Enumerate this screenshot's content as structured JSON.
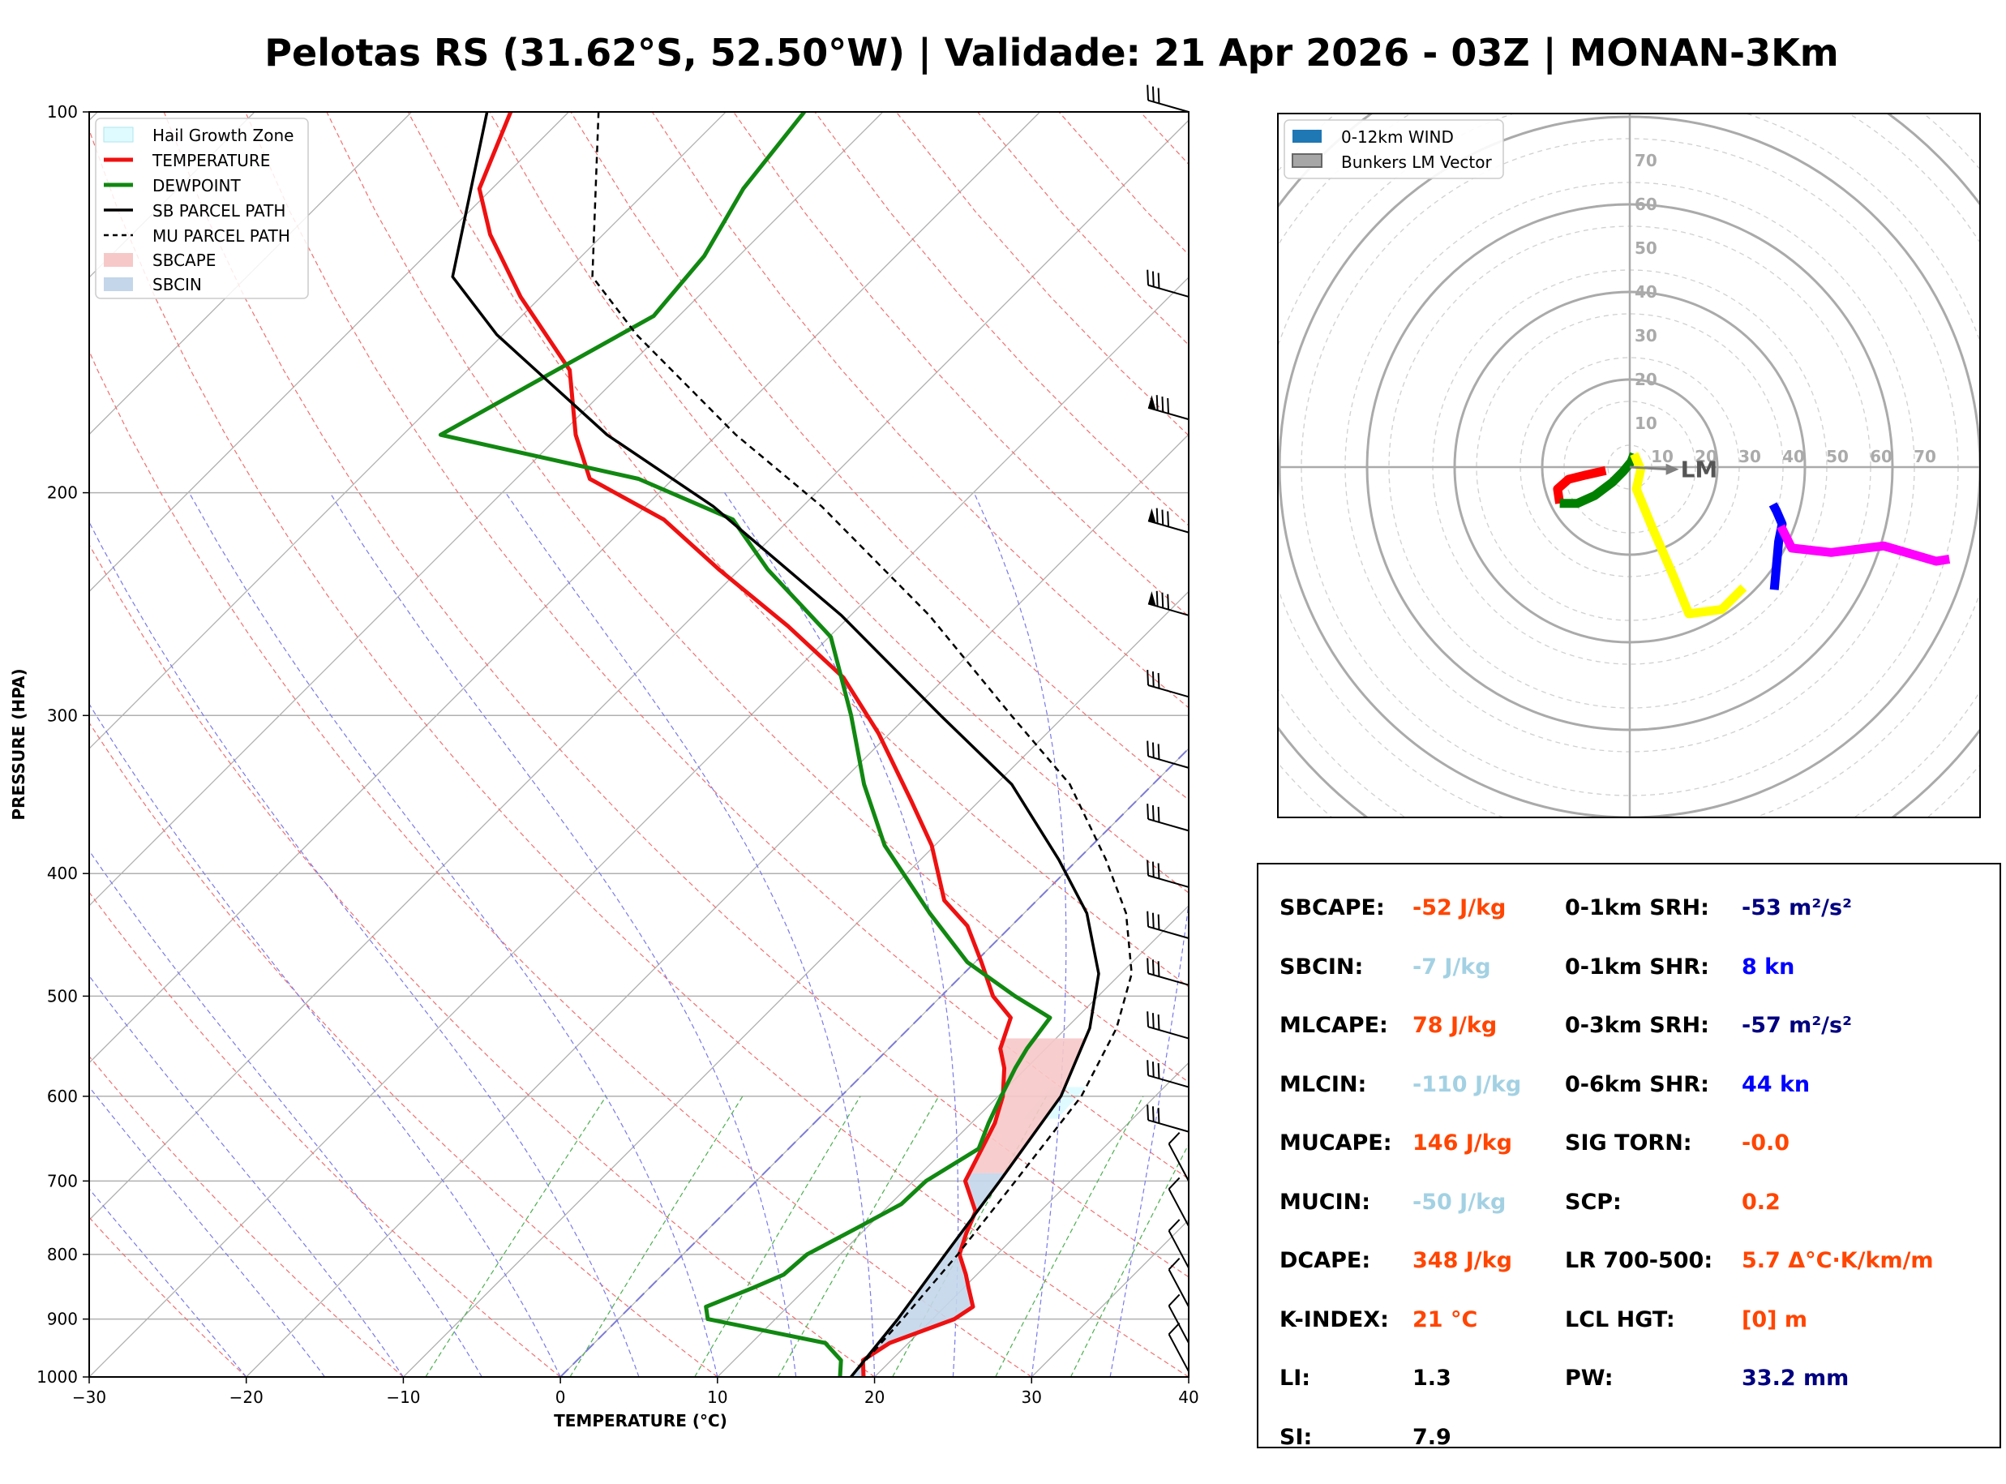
{
  "title": "Pelotas RS (31.62°S, 52.50°W) | Validade: 21 Apr 2026 - 03Z | MONAN-3Km",
  "colors": {
    "temperature": "#ee1111",
    "dewpoint": "#118811",
    "sb_parcel": "#000000",
    "mu_parcel": "#000000",
    "sbcape": "#f7c8c8",
    "sbcin": "#c3d6ea",
    "hgz": "#e0fbff",
    "hodo_0_1": "#ff0000",
    "hodo_1_3": "#008000",
    "hodo_3_6": "#ffff00",
    "hodo_6_9": "#0000ff",
    "hodo_9_12": "#ff00ff",
    "value_orange": "#ff4500",
    "value_lightblue": "#a3d1e3",
    "value_navy": "#000080",
    "value_blue": "#0000ff",
    "value_black": "#000000"
  },
  "skewt": {
    "legend": [
      {
        "name": "hail",
        "label": "Hail Growth Zone"
      },
      {
        "name": "temp",
        "label": "TEMPERATURE"
      },
      {
        "name": "dew",
        "label": "DEWPOINT"
      },
      {
        "name": "sb",
        "label": "SB PARCEL PATH"
      },
      {
        "name": "mu",
        "label": "MU PARCEL PATH"
      },
      {
        "name": "cape",
        "label": "SBCAPE"
      },
      {
        "name": "cin",
        "label": "SBCIN"
      }
    ],
    "xlabel": "TEMPERATURE (°C)",
    "ylabel": "PRESSURE (HPA)"
  },
  "hodograph": {
    "legend": [
      {
        "name": "wind",
        "label": "0-12km WIND"
      },
      {
        "name": "bunkers",
        "label": "Bunkers LM Vector"
      }
    ],
    "ring_labels": [
      "10",
      "20",
      "30",
      "40",
      "50",
      "60",
      "70"
    ],
    "lm_label": "LM"
  },
  "parameters": {
    "left": [
      {
        "label": "SBCAPE:",
        "value": "-52 J/kg",
        "color": "#ff4500"
      },
      {
        "label": "SBCIN:",
        "value": "-7 J/kg",
        "color": "#a3d1e3"
      },
      {
        "label": "MLCAPE:",
        "value": "78 J/kg",
        "color": "#ff4500"
      },
      {
        "label": "MLCIN:",
        "value": "-110 J/kg",
        "color": "#a3d1e3"
      },
      {
        "label": "MUCAPE:",
        "value": "146 J/kg",
        "color": "#ff4500"
      },
      {
        "label": "MUCIN:",
        "value": "-50 J/kg",
        "color": "#a3d1e3"
      },
      {
        "label": "DCAPE:",
        "value": "348 J/kg",
        "color": "#ff4500"
      },
      {
        "label": "K-INDEX:",
        "value": "21 °C",
        "color": "#ff4500"
      },
      {
        "label": "LI:",
        "value": "1.3",
        "color": "#000000"
      },
      {
        "label": "SI:",
        "value": "7.9",
        "color": "#000000"
      }
    ],
    "right": [
      {
        "label": "0-1km SRH:",
        "value": "-53 m²/s²",
        "color": "#000080"
      },
      {
        "label": "0-1km SHR:",
        "value": "8 kn",
        "color": "#0000ff"
      },
      {
        "label": "0-3km SRH:",
        "value": "-57 m²/s²",
        "color": "#000080"
      },
      {
        "label": "0-6km SHR:",
        "value": "44 kn",
        "color": "#0000ff"
      },
      {
        "label": "SIG TORN:",
        "value": "-0.0",
        "color": "#ff4500"
      },
      {
        "label": "SCP:",
        "value": "0.2",
        "color": "#ff4500"
      },
      {
        "label": "LR 700-500:",
        "value": "5.7 Δ°C·K/km/m",
        "color": "#ff4500"
      },
      {
        "label": "LCL HGT:",
        "value": "[0] m",
        "color": "#ff4500"
      },
      {
        "label": "PW:",
        "value": "33.2 mm",
        "color": "#000080"
      }
    ]
  },
  "chart_data": [
    {
      "type": "line",
      "subtype": "skew-t log-p",
      "xlabel": "TEMPERATURE (°C)",
      "ylabel": "PRESSURE (HPA)",
      "xlim": [
        -30,
        40
      ],
      "ylim": [
        1000,
        100
      ],
      "yscale": "log",
      "xticks": [
        -30,
        -20,
        -10,
        0,
        10,
        20,
        30,
        40
      ],
      "yticks": [
        1000,
        900,
        800,
        700,
        600,
        500,
        400,
        300,
        200,
        100
      ],
      "legend_position": "top-left",
      "series": [
        {
          "name": "TEMPERATURE",
          "points": [
            [
              19.3,
              1000
            ],
            [
              18.2,
              970
            ],
            [
              18.8,
              940
            ],
            [
              21.4,
              900
            ],
            [
              21.8,
              880
            ],
            [
              20.3,
              850
            ],
            [
              19.3,
              830
            ],
            [
              17.6,
              800
            ],
            [
              16.7,
              770
            ],
            [
              15.9,
              740
            ],
            [
              13.3,
              700
            ],
            [
              12.3,
              660
            ],
            [
              11.5,
              630
            ],
            [
              10.3,
              600
            ],
            [
              8.6,
              570
            ],
            [
              7.1,
              550
            ],
            [
              5.8,
              520
            ],
            [
              3.3,
              500
            ],
            [
              0.4,
              470
            ],
            [
              -2.8,
              440
            ],
            [
              -5.9,
              420
            ],
            [
              -10.2,
              380
            ],
            [
              -14.4,
              350
            ],
            [
              -20.7,
              310
            ],
            [
              -26.5,
              280
            ],
            [
              -33.3,
              255
            ],
            [
              -41.3,
              230
            ],
            [
              -48.0,
              210
            ],
            [
              -55.3,
              195
            ],
            [
              -59.0,
              180
            ],
            [
              -63.5,
              160
            ],
            [
              -71.3,
              140
            ],
            [
              -77.2,
              125
            ],
            [
              -80.8,
              115
            ],
            [
              -83.7,
              100
            ]
          ]
        },
        {
          "name": "DEWPOINT",
          "points": [
            [
              17.8,
              1000
            ],
            [
              16.8,
              970
            ],
            [
              14.7,
              940
            ],
            [
              5.7,
              900
            ],
            [
              4.8,
              880
            ],
            [
              6.6,
              850
            ],
            [
              7.7,
              830
            ],
            [
              7.9,
              800
            ],
            [
              9.5,
              760
            ],
            [
              10.7,
              730
            ],
            [
              10.8,
              700
            ],
            [
              12.1,
              660
            ],
            [
              11.1,
              630
            ],
            [
              10.2,
              600
            ],
            [
              9.3,
              570
            ],
            [
              8.8,
              550
            ],
            [
              8.3,
              520
            ],
            [
              4.7,
              500
            ],
            [
              -0.5,
              470
            ],
            [
              -6.0,
              430
            ],
            [
              -13.2,
              380
            ],
            [
              -18.4,
              340
            ],
            [
              -23.6,
              300
            ],
            [
              -29.9,
              260
            ],
            [
              -38.2,
              230
            ],
            [
              -43.6,
              210
            ],
            [
              -52.2,
              195
            ],
            [
              -67.6,
              180
            ],
            [
              -65.2,
              165
            ],
            [
              -61.6,
              145
            ],
            [
              -62.2,
              130
            ],
            [
              -64.0,
              115
            ],
            [
              -65.0,
              100
            ]
          ]
        },
        {
          "name": "SB PARCEL PATH",
          "points": [
            [
              18.5,
              1000
            ],
            [
              17.8,
              900
            ],
            [
              16.7,
              800
            ],
            [
              15.5,
              700
            ],
            [
              14.0,
              600
            ],
            [
              11.5,
              530
            ],
            [
              8.6,
              480
            ],
            [
              4.0,
              430
            ],
            [
              -1.2,
              390
            ],
            [
              -9.0,
              340
            ],
            [
              -17.9,
              300
            ],
            [
              -30.6,
              250
            ],
            [
              -45.7,
              205
            ],
            [
              -57.0,
              180
            ],
            [
              -70.4,
              150
            ],
            [
              -76.9,
              135
            ],
            [
              -85.2,
              100
            ]
          ]
        },
        {
          "name": "MU PARCEL PATH",
          "points": [
            [
              18.5,
              1000
            ],
            [
              18.1,
              900
            ],
            [
              17.5,
              800
            ],
            [
              16.5,
              700
            ],
            [
              15.3,
              600
            ],
            [
              13.2,
              530
            ],
            [
              10.7,
              480
            ],
            [
              6.5,
              430
            ],
            [
              1.8,
              390
            ],
            [
              -5.3,
              340
            ],
            [
              -13.4,
              300
            ],
            [
              -25.0,
              250
            ],
            [
              -38.8,
              205
            ],
            [
              -48.8,
              180
            ],
            [
              -61.5,
              150
            ],
            [
              -68.0,
              135
            ],
            [
              -78.1,
              100
            ]
          ]
        }
      ]
    },
    {
      "type": "line",
      "subtype": "hodograph",
      "rings": [
        10,
        20,
        30,
        40,
        50,
        60,
        70
      ],
      "legend_position": "top-left",
      "bunkers_lm": {
        "u": 9,
        "v": -0.5
      },
      "series": [
        {
          "name": "0-1km",
          "color": "#ff0000",
          "uv": [
            [
              -5.5,
              -0.8
            ],
            [
              -10,
              -1.8
            ],
            [
              -14,
              -2.8
            ],
            [
              -16.5,
              -5
            ],
            [
              -16,
              -8.3
            ]
          ]
        },
        {
          "name": "1-3km",
          "color": "#008000",
          "uv": [
            [
              -16,
              -8.3
            ],
            [
              -12,
              -8.3
            ],
            [
              -8,
              -6.5
            ],
            [
              -4,
              -3.5
            ],
            [
              -1.5,
              -1
            ],
            [
              0.3,
              1.2
            ],
            [
              1,
              3
            ]
          ]
        },
        {
          "name": "3-6km",
          "color": "#ffff00",
          "uv": [
            [
              1,
              3
            ],
            [
              2.5,
              -0.5
            ],
            [
              1.5,
              -5
            ],
            [
              5,
              -13.5
            ],
            [
              10,
              -25
            ],
            [
              13.5,
              -33.5
            ],
            [
              21,
              -32.5
            ],
            [
              26,
              -27.5
            ]
          ]
        },
        {
          "name": "6-9km",
          "color": "#0000ff",
          "uv": [
            [
              33,
              -28
            ],
            [
              34,
              -17
            ],
            [
              34.8,
              -13
            ],
            [
              33.5,
              -10
            ],
            [
              32.7,
              -8.5
            ]
          ]
        },
        {
          "name": "9-12km",
          "color": "#ff00ff",
          "uv": [
            [
              34.5,
              -13.5
            ],
            [
              37,
              -18.5
            ],
            [
              46,
              -19.5
            ],
            [
              58,
              -18
            ],
            [
              70,
              -21.5
            ],
            [
              73,
              -21
            ]
          ]
        }
      ]
    }
  ]
}
